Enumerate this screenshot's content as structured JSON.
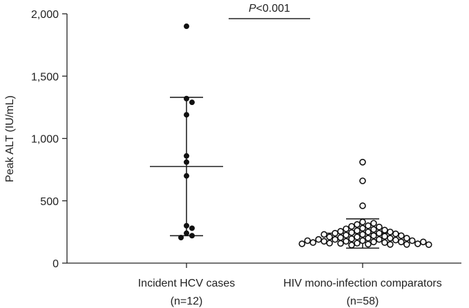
{
  "chart_data": {
    "type": "scatter",
    "ylabel": "Peak ALT (IU/mL)",
    "ylim": [
      0,
      2000
    ],
    "yticks": [
      0,
      500,
      1000,
      1500,
      2000
    ],
    "ytick_labels": [
      "0",
      "500",
      "1,000",
      "1,500",
      "2,000"
    ],
    "grid": false,
    "significance": {
      "label_italic": "P",
      "label_rest": "<0.001"
    },
    "groups": [
      {
        "label_line1": "Incident HCV cases",
        "label_line2": "(n=12)",
        "marker": "filled",
        "color": "#111111",
        "mean": 775,
        "upper": 1330,
        "lower": 220,
        "values": [
          1900,
          1320,
          1290,
          1190,
          860,
          810,
          700,
          300,
          280,
          240,
          220,
          205
        ]
      },
      {
        "label_line1": "HIV mono-infection comparators",
        "label_line2": "(n=58)",
        "marker": "open",
        "color": "#111111",
        "mean": 240,
        "upper": 355,
        "lower": 120,
        "values": [
          810,
          660,
          460,
          330,
          320,
          310,
          300,
          295,
          290,
          280,
          275,
          270,
          265,
          260,
          255,
          250,
          245,
          240,
          240,
          235,
          230,
          225,
          220,
          215,
          210,
          205,
          200,
          200,
          195,
          190,
          190,
          185,
          180,
          180,
          175,
          175,
          170,
          170,
          165,
          165,
          160,
          160,
          158,
          155,
          155,
          152,
          150,
          150,
          148,
          145,
          170,
          180,
          190,
          200,
          210,
          220,
          230,
          250
        ]
      }
    ]
  }
}
